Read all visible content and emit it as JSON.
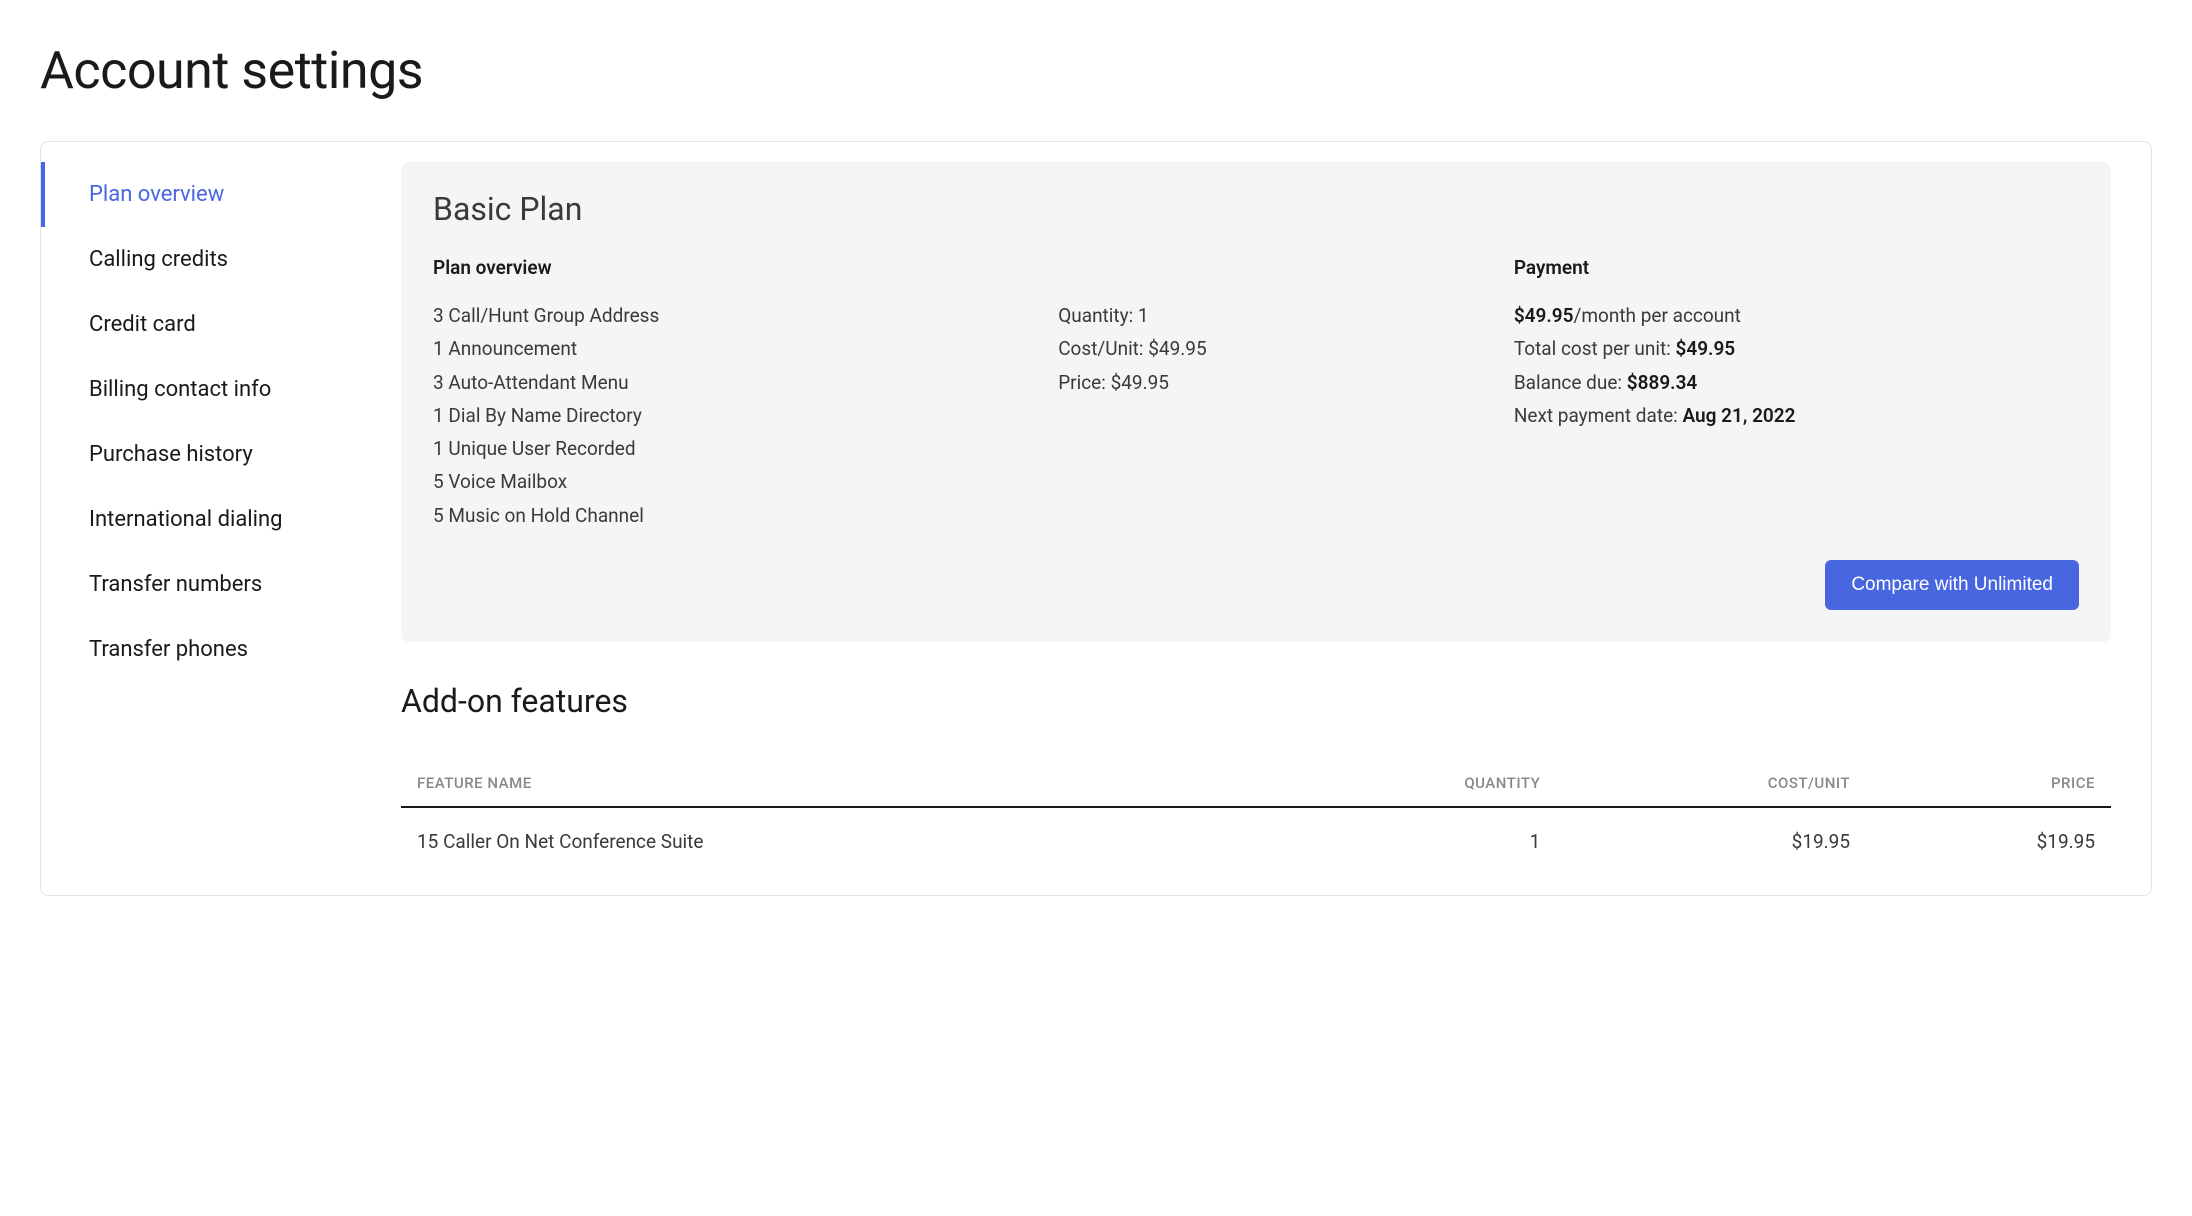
{
  "page": {
    "title": "Account settings"
  },
  "sidebar": {
    "items": [
      {
        "label": "Plan overview",
        "active": true
      },
      {
        "label": "Calling credits",
        "active": false
      },
      {
        "label": "Credit card",
        "active": false
      },
      {
        "label": "Billing contact info",
        "active": false
      },
      {
        "label": "Purchase history",
        "active": false
      },
      {
        "label": "International dialing",
        "active": false
      },
      {
        "label": "Transfer numbers",
        "active": false
      },
      {
        "label": "Transfer phones",
        "active": false
      }
    ]
  },
  "plan": {
    "title": "Basic Plan",
    "overview_heading": "Plan overview",
    "features": [
      "3 Call/Hunt Group Address",
      "1 Announcement",
      "3 Auto-Attendant Menu",
      "1 Dial By Name Directory",
      "1 Unique User Recorded",
      "5 Voice Mailbox",
      "5 Music on Hold Channel"
    ],
    "quantity_label": "Quantity: ",
    "quantity_value": "1",
    "cost_unit_label": "Cost/Unit: ",
    "cost_unit_value": "$49.95",
    "price_label": "Price: ",
    "price_value": "$49.95",
    "payment_heading": "Payment",
    "payment_rate_value": "$49.95",
    "payment_rate_suffix": "/month per account",
    "total_cost_label": "Total cost per unit: ",
    "total_cost_value": "$49.95",
    "balance_due_label": "Balance due: ",
    "balance_due_value": "$889.34",
    "next_payment_label": "Next payment date: ",
    "next_payment_value": "Aug 21, 2022",
    "compare_button_label": "Compare with Unlimited"
  },
  "addons": {
    "heading": "Add-on features",
    "columns": [
      "FEATURE NAME",
      "QUANTITY",
      "COST/UNIT",
      "PRICE"
    ],
    "rows": [
      {
        "name": "15 Caller On Net Conference Suite",
        "quantity": "1",
        "cost_unit": "$19.95",
        "price": "$19.95"
      }
    ]
  },
  "colors": {
    "accent": "#4866e0",
    "card_bg": "#f5f5f5",
    "text_primary": "#1a1a1a",
    "text_secondary": "#3a3a3a",
    "text_muted": "#888888",
    "background": "#ffffff",
    "border": "#e5e5e5"
  }
}
